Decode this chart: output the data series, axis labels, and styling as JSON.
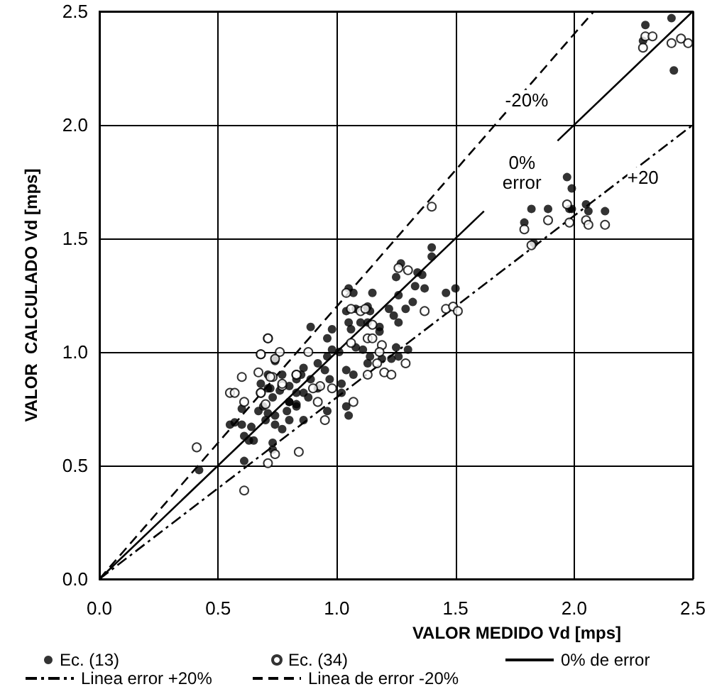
{
  "chart_data": {
    "type": "scatter",
    "xlabel": "VALOR MEDIDO Vd [mps]",
    "ylabel": "VALOR  CALCULADO Vd [mps]",
    "xlim": [
      0,
      2.5
    ],
    "ylim": [
      0,
      2.5
    ],
    "xticks": [
      {
        "value": 0,
        "label": "0.0"
      },
      {
        "value": 0.5,
        "label": "0.5"
      },
      {
        "value": 1,
        "label": "1.0"
      },
      {
        "value": 1.5,
        "label": "1.5"
      },
      {
        "value": 2,
        "label": "2.0"
      },
      {
        "value": 2.5,
        "label": "2.5"
      }
    ],
    "yticks": [
      {
        "value": 0,
        "label": "0.0"
      },
      {
        "value": 0.5,
        "label": "0.5"
      },
      {
        "value": 1,
        "label": "1.0"
      },
      {
        "value": 1.5,
        "label": "1.5"
      },
      {
        "value": 2,
        "label": "2.0"
      },
      {
        "value": 2.5,
        "label": "2.5"
      }
    ],
    "grid": true,
    "legend": "bottom",
    "annotations": [
      {
        "text": "-20%",
        "x": 1.8,
        "y": 2.11
      },
      {
        "text": "0%\nerror",
        "x": 1.78,
        "y": 1.79
      },
      {
        "text": "+20",
        "x": 2.29,
        "y": 1.77
      }
    ],
    "series": [
      {
        "name": "Ec. (13)",
        "type": "scatter",
        "marker": "circle",
        "color": "#000000",
        "x": [
          2.3,
          2.41,
          2.29,
          2.42,
          1.97,
          1.99,
          1.82,
          1.89,
          1.98,
          1.99,
          2.05,
          2.06,
          2.13,
          1.79,
          1.83,
          1.4,
          1.4,
          1.27,
          1.25,
          1.34,
          1.36,
          1.33,
          1.37,
          1.46,
          1.5,
          1.26,
          1.32,
          1.29,
          1.05,
          1.07,
          1.15,
          1.13,
          1.14,
          1.08,
          1.04,
          1.05,
          1.1,
          1.13,
          1.06,
          1.18,
          1.22,
          1.24,
          1.26,
          1.18,
          0.98,
          0.89,
          0.96,
          0.98,
          1.01,
          0.96,
          1.08,
          1.11,
          1.14,
          1.19,
          1.25,
          1.26,
          1.3,
          1.23,
          1.13,
          0.92,
          0.95,
          0.86,
          0.85,
          1.04,
          1.07,
          1.02,
          0.89,
          0.97,
          0.92,
          0.86,
          0.83,
          0.88,
          0.77,
          0.74,
          0.71,
          0.8,
          0.76,
          0.71,
          0.73,
          0.8,
          0.83,
          0.79,
          0.69,
          0.74,
          0.86,
          1.04,
          1.05,
          1.02,
          0.96,
          0.42,
          0.61,
          0.55,
          0.57,
          0.6,
          0.6,
          0.64,
          0.65,
          0.63,
          0.61,
          0.67,
          0.68,
          0.72,
          0.71,
          0.74,
          0.7,
          0.73,
          0.77,
          0.8,
          0.8,
          0.83,
          0.74,
          0.83,
          0.73
        ],
        "values": [
          2.44,
          2.47,
          2.37,
          2.24,
          1.77,
          1.72,
          1.63,
          1.63,
          1.63,
          1.63,
          1.65,
          1.62,
          1.62,
          1.57,
          1.48,
          1.46,
          1.42,
          1.39,
          1.33,
          1.35,
          1.34,
          1.29,
          1.28,
          1.26,
          1.28,
          1.25,
          1.22,
          1.19,
          1.28,
          1.26,
          1.26,
          1.2,
          1.18,
          1.19,
          1.18,
          1.13,
          1.13,
          1.13,
          1.1,
          1.11,
          1.19,
          1.16,
          1.13,
          1.09,
          1.1,
          1.11,
          1.06,
          1.01,
          1.0,
          0.98,
          1.02,
          1.01,
          0.98,
          0.97,
          1.02,
          0.98,
          1.01,
          0.97,
          0.95,
          0.95,
          0.92,
          0.93,
          0.9,
          0.92,
          0.9,
          0.86,
          0.88,
          0.88,
          0.84,
          0.82,
          0.82,
          0.8,
          0.9,
          0.96,
          0.9,
          0.85,
          0.83,
          0.84,
          0.8,
          0.78,
          0.76,
          0.74,
          0.76,
          0.72,
          0.7,
          0.76,
          0.72,
          0.82,
          0.74,
          0.48,
          0.52,
          0.68,
          0.69,
          0.68,
          0.75,
          0.67,
          0.61,
          0.61,
          0.63,
          0.74,
          0.86,
          0.84,
          0.73,
          0.68,
          0.7,
          0.6,
          0.66,
          0.7,
          0.78,
          0.77,
          0.97,
          0.88,
          0.57
        ]
      },
      {
        "name": "Ec. (34)",
        "type": "scatter",
        "marker": "open_circle",
        "color": "#000000",
        "x": [
          2.3,
          2.33,
          2.29,
          2.41,
          2.45,
          2.48,
          1.79,
          1.89,
          1.97,
          1.98,
          2.05,
          2.06,
          2.13,
          1.82,
          1.4,
          1.26,
          1.3,
          1.04,
          1.06,
          1.1,
          1.12,
          1.37,
          1.46,
          1.49,
          1.51,
          1.15,
          1.13,
          1.15,
          1.06,
          1.19,
          0.71,
          0.88,
          0.68,
          0.76,
          0.74,
          1.18,
          1.17,
          1.29,
          1.13,
          1.2,
          1.23,
          0.83,
          0.93,
          0.98,
          0.9,
          0.73,
          0.77,
          0.68,
          0.92,
          1.07,
          0.7,
          0.95,
          0.41,
          0.61,
          0.71,
          0.71,
          0.68,
          0.55,
          0.57,
          0.6,
          0.67,
          0.68,
          0.72,
          0.77,
          0.83,
          0.84,
          0.61,
          0.74
        ],
        "values": [
          2.39,
          2.39,
          2.34,
          2.36,
          2.38,
          2.36,
          1.54,
          1.58,
          1.65,
          1.57,
          1.58,
          1.56,
          1.56,
          1.47,
          1.64,
          1.37,
          1.36,
          1.26,
          1.19,
          1.18,
          1.19,
          1.18,
          1.19,
          1.2,
          1.18,
          1.12,
          1.06,
          1.06,
          1.04,
          1.03,
          1.06,
          1.0,
          0.99,
          1.0,
          0.97,
          1.0,
          0.95,
          0.95,
          0.9,
          0.91,
          0.9,
          0.9,
          0.85,
          0.84,
          0.84,
          0.89,
          0.85,
          0.82,
          0.78,
          0.78,
          0.77,
          0.7,
          0.58,
          0.39,
          0.51,
          1.06,
          0.99,
          0.82,
          0.82,
          0.89,
          0.91,
          0.82,
          0.89,
          0.86,
          0.9,
          0.56,
          0.78,
          0.55
        ]
      },
      {
        "name": "0% de error",
        "type": "line",
        "line_style": "solid",
        "color": "#000000",
        "x": [
          0,
          1.62,
          1.7,
          1.93,
          2.5
        ],
        "values": [
          0,
          1.62,
          null,
          1.93,
          2.5
        ]
      },
      {
        "name": "Linea error +20%",
        "type": "line",
        "line_style": "dashdot",
        "color": "#000000",
        "x": [
          0,
          2.5
        ],
        "values": [
          0,
          2.0
        ]
      },
      {
        "name": "Linea de error -20%",
        "type": "line",
        "line_style": "dashed",
        "color": "#000000",
        "x": [
          0,
          2.083
        ],
        "values": [
          0,
          2.5
        ]
      }
    ]
  }
}
